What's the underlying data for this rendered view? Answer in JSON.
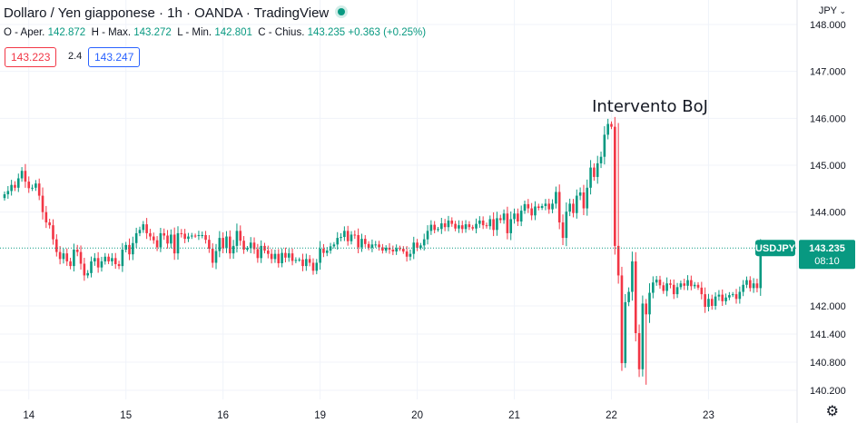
{
  "header": {
    "title": "Dollaro / Yen giapponese · 1h · OANDA · TradingView",
    "ohlc": {
      "open_label": "O - Aper.",
      "open": "142.872",
      "high_label": "H - Max.",
      "high": "143.272",
      "low_label": "L - Min.",
      "low": "142.801",
      "close_label": "C - Chius.",
      "close": "143.235",
      "change": "+0.363 (+0.25%)"
    },
    "sell_price": "143.223",
    "spread": "2.4",
    "buy_price": "143.247",
    "currency": "JPY"
  },
  "colors": {
    "up": "#089981",
    "down": "#f23645",
    "grid": "#f0f3fa",
    "text": "#131722",
    "buy": "#2962ff"
  },
  "icons": {
    "currency_dropdown": "chevron-down-icon",
    "settings": "gear-icon",
    "live_status": "live-dot-icon"
  },
  "chart_data": {
    "type": "candlestick",
    "symbol": "USDJPY",
    "timeframe": "1h",
    "current_price": "143.235",
    "countdown": "08:10",
    "annotation": "Intervento BoJ",
    "y_ticks": [
      "148.000",
      "147.000",
      "146.000",
      "145.000",
      "144.000",
      "142.000",
      "141.400",
      "140.800",
      "140.200"
    ],
    "x_ticks": [
      "14",
      "15",
      "16",
      "19",
      "20",
      "21",
      "22",
      "23"
    ],
    "ylim": [
      140.05,
      148.25
    ],
    "grid": true,
    "y_axis_position": "right",
    "annotation_series_index": 177,
    "close_series": [
      144.38,
      144.45,
      144.58,
      144.52,
      144.72,
      144.88,
      144.65,
      144.51,
      144.52,
      144.61,
      144.35,
      144.0,
      143.78,
      143.72,
      143.42,
      143.15,
      143.0,
      143.12,
      142.95,
      142.85,
      143.2,
      143.15,
      142.9,
      142.65,
      142.7,
      142.95,
      143.02,
      142.82,
      142.95,
      143.05,
      142.95,
      143.02,
      142.89,
      142.85,
      143.2,
      143.3,
      143.1,
      143.34,
      143.55,
      143.62,
      143.74,
      143.55,
      143.48,
      143.4,
      143.25,
      143.55,
      143.5,
      143.33,
      143.52,
      143.12,
      143.55,
      143.54,
      143.43,
      143.48,
      143.5,
      143.49,
      143.51,
      143.51,
      143.41,
      143.22,
      142.92,
      143.17,
      143.45,
      143.23,
      143.48,
      143.12,
      143.28,
      143.6,
      143.39,
      143.2,
      143.23,
      143.35,
      143.21,
      143.02,
      143.28,
      143.18,
      143.11,
      143.0,
      143.11,
      142.91,
      143.13,
      143.03,
      143.12,
      142.96,
      142.98,
      142.99,
      142.85,
      143.0,
      142.92,
      142.75,
      142.92,
      143.22,
      143.13,
      143.18,
      143.27,
      143.31,
      143.45,
      143.47,
      143.6,
      143.38,
      143.52,
      143.51,
      143.25,
      143.43,
      143.32,
      143.24,
      143.31,
      143.31,
      143.25,
      143.18,
      143.24,
      143.2,
      143.16,
      143.23,
      143.22,
      143.16,
      143.05,
      143.11,
      143.35,
      143.24,
      143.29,
      143.42,
      143.6,
      143.73,
      143.62,
      143.64,
      143.76,
      143.68,
      143.82,
      143.75,
      143.65,
      143.72,
      143.64,
      143.74,
      143.68,
      143.65,
      143.75,
      143.82,
      143.72,
      143.7,
      143.85,
      143.62,
      143.87,
      143.83,
      143.97,
      143.55,
      143.85,
      143.97,
      143.8,
      144.03,
      144.17,
      144.08,
      143.93,
      144.12,
      144.09,
      144.13,
      144.18,
      144.06,
      144.18,
      144.43,
      143.78,
      143.45,
      144.01,
      144.18,
      143.98,
      144.35,
      144.42,
      144.08,
      144.52,
      144.95,
      144.75,
      145.04,
      145.18,
      145.65,
      145.88,
      145.82,
      143.28,
      142.65,
      140.78,
      142.08,
      142.3,
      142.95,
      141.42,
      140.65,
      142.05,
      141.82,
      142.28,
      142.5,
      142.56,
      142.44,
      142.32,
      142.48,
      142.45,
      142.25,
      142.4,
      142.48,
      142.43,
      142.55,
      142.42,
      142.45,
      142.39,
      142.25,
      141.98,
      142.15,
      142.0,
      142.2,
      142.24,
      142.1,
      142.18,
      142.23,
      142.25,
      142.15,
      142.3,
      142.45,
      142.55,
      142.38,
      142.48,
      142.38,
      143.24
    ]
  }
}
